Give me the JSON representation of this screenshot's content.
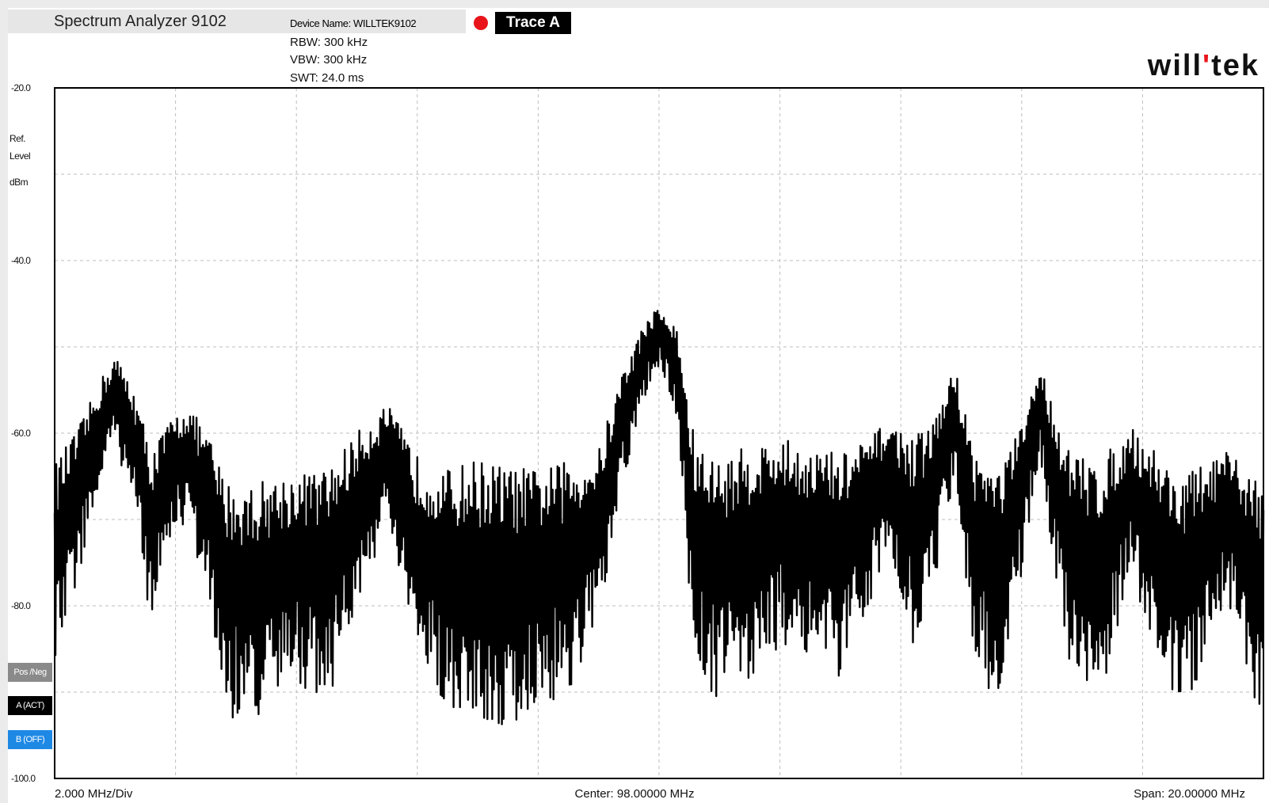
{
  "header": {
    "app_title": "Spectrum Analyzer 9102",
    "device_name": "Device Name: WILLTEK9102",
    "rbw": "RBW:  300 kHz",
    "vbw": "VBW:  300 kHz",
    "swt": "SWT:  24.0 ms",
    "trace_label": "Trace A",
    "brand": "will'tek"
  },
  "axis_unit": {
    "line1": "Ref.",
    "line2": "Level",
    "line3": "dBm"
  },
  "side_buttons": {
    "posneg": "Pos /Neg",
    "trace_a": "A (ACT)",
    "trace_b": "B (OFF)"
  },
  "footer": {
    "per_div": "2.000 MHz/Div",
    "center": "Center: 98.00000 MHz",
    "span": "Span: 20.00000 MHz"
  },
  "colors": {
    "trace": "#000000",
    "trace_dot": "#e8141a",
    "trace_b_button": "#1e88e5",
    "grid": "#bdbdbd"
  },
  "chart_data": {
    "type": "line",
    "title": "",
    "xlabel": "",
    "ylabel": "dBm",
    "xlim": [
      88,
      108
    ],
    "ylim": [
      -100,
      -20
    ],
    "y_ticks": [
      -20,
      -40,
      -60,
      -80,
      -100
    ],
    "y_tick_labels": [
      "-20.0",
      "-40.0",
      "-60.0",
      "-80.0",
      "-100.0"
    ],
    "x_divisions": 10,
    "y_divisions": 8,
    "grid": true,
    "series": [
      {
        "x": [
          88.0,
          88.4,
          88.8,
          89.0,
          89.3,
          89.6,
          89.9,
          90.2,
          90.6,
          90.8,
          91.1,
          91.5,
          92.0,
          92.5,
          93.0,
          93.5,
          94.0,
          94.5,
          95.0,
          95.5,
          96.0,
          96.5,
          97.0,
          97.4,
          97.8,
          98.0,
          98.3,
          98.6,
          99.0,
          99.5,
          100.0,
          100.5,
          101.0,
          101.4,
          101.8,
          102.2,
          102.5,
          102.9,
          103.2,
          103.6,
          104.0,
          104.3,
          104.8,
          105.3,
          105.8,
          106.2,
          106.6,
          107.0,
          107.4,
          107.8,
          108.0
        ],
        "mean": [
          -73,
          -66,
          -58,
          -55,
          -60,
          -70,
          -64,
          -62,
          -69,
          -76,
          -77,
          -76,
          -74,
          -75,
          -68,
          -62,
          -72,
          -75,
          -75,
          -76,
          -75,
          -74,
          -70,
          -58,
          -50,
          -48,
          -52,
          -72,
          -74,
          -72,
          -70,
          -71,
          -73,
          -69,
          -64,
          -70,
          -67,
          -57,
          -71,
          -75,
          -66,
          -56,
          -73,
          -74,
          -66,
          -71,
          -76,
          -73,
          -69,
          -74,
          -77
        ],
        "spread": [
          14,
          10,
          7,
          6,
          8,
          12,
          8,
          8,
          12,
          16,
          16,
          16,
          14,
          16,
          12,
          8,
          14,
          16,
          18,
          18,
          16,
          16,
          12,
          8,
          5,
          4,
          6,
          16,
          16,
          16,
          14,
          14,
          16,
          12,
          8,
          14,
          12,
          7,
          14,
          16,
          10,
          6,
          16,
          16,
          10,
          14,
          16,
          14,
          10,
          14,
          18
        ]
      }
    ]
  }
}
